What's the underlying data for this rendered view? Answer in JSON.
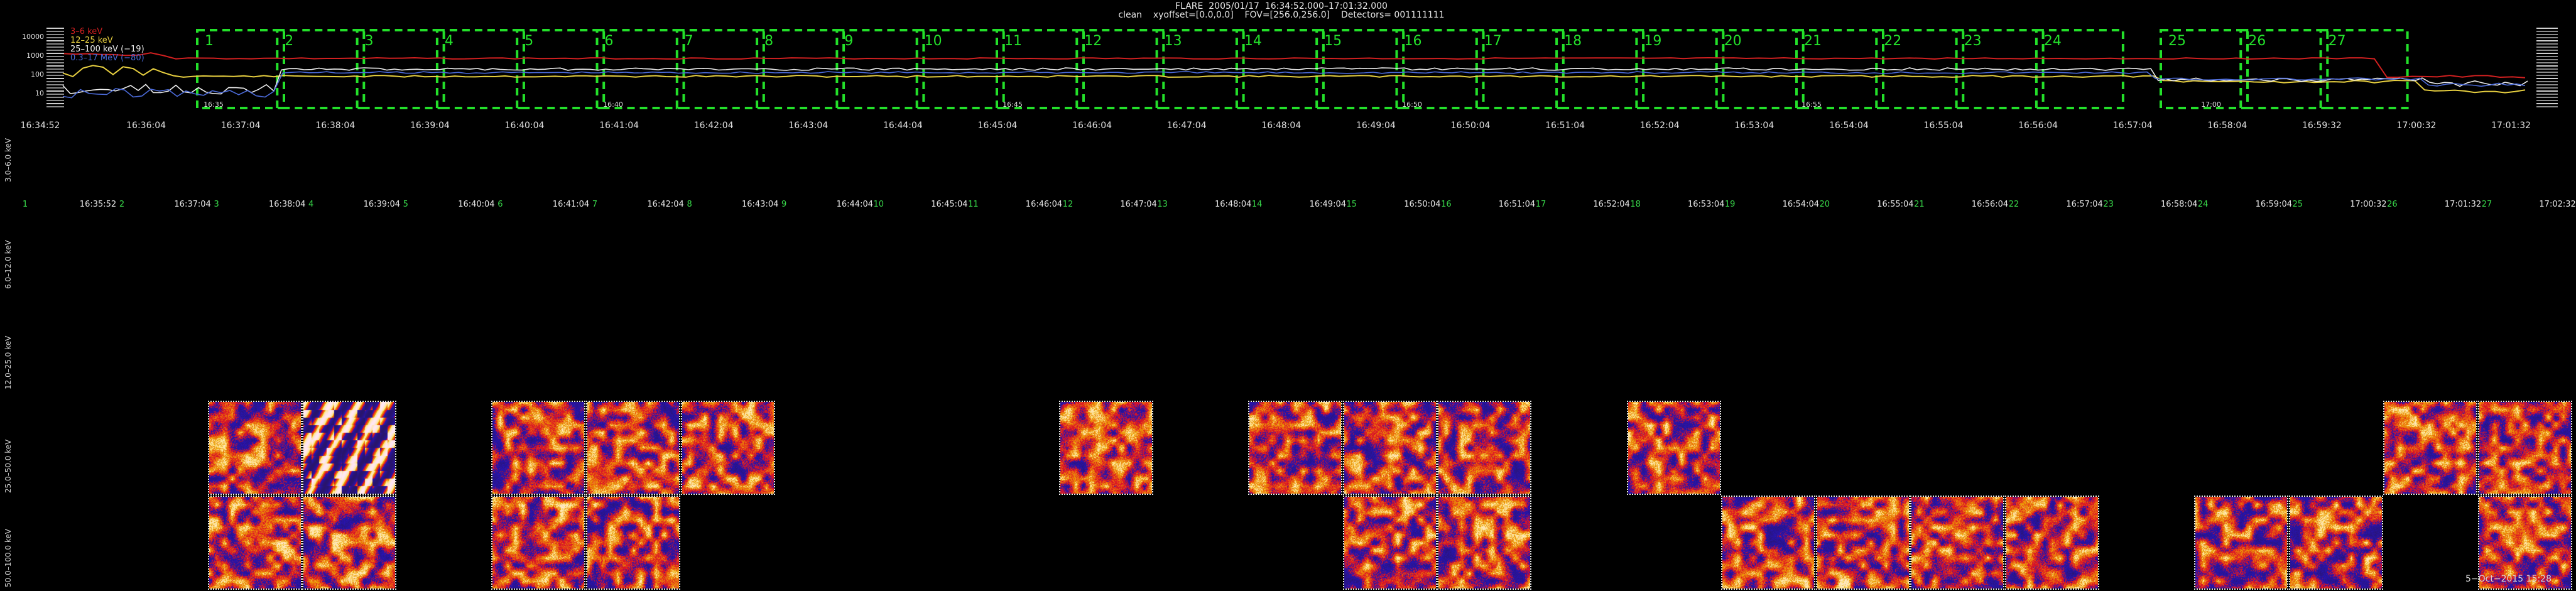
{
  "header": {
    "line1": "FLARE  2005/01/17  16:34:52.000–17:01:32.000",
    "line2": "clean    xyoffset=[0.0,0.0]    FOV=[256.0,256.0]    Detectors= 001111111"
  },
  "lightcurve": {
    "legend": [
      {
        "label": "3–6 keV",
        "color": "#d22020"
      },
      {
        "label": "12–25 keV",
        "color": "#e8d040"
      },
      {
        "label": "25–100 keV (−19)",
        "color": "#eeeeee"
      },
      {
        "label": "0.3–17 MeV (−80)",
        "color": "#4b6ad8"
      }
    ],
    "y_ticks": [
      "10000",
      "1000",
      "100",
      "10"
    ],
    "inner_ticks": [
      "16:35",
      "16:40",
      "16:45",
      "16:50",
      "16:55",
      "17:00"
    ],
    "box_numbers": [
      "1",
      "2",
      "3",
      "4",
      "5",
      "6",
      "7",
      "8",
      "9",
      "10",
      "11",
      "12",
      "13",
      "14",
      "15",
      "16",
      "17",
      "18",
      "19",
      "20",
      "21",
      "22",
      "23",
      "24",
      "25",
      "26",
      "27"
    ],
    "box_color": "#23e02a"
  },
  "time_axis": [
    "16:34:52",
    "16:36:04",
    "16:37:04",
    "16:38:04",
    "16:39:04",
    "16:40:04",
    "16:41:04",
    "16:42:04",
    "16:43:04",
    "16:44:04",
    "16:45:04",
    "16:46:04",
    "16:47:04",
    "16:48:04",
    "16:49:04",
    "16:50:04",
    "16:51:04",
    "16:52:04",
    "16:53:04",
    "16:54:04",
    "16:55:04",
    "16:56:04",
    "16:57:04",
    "16:58:04",
    "16:59:32",
    "17:00:32",
    "17:01:32"
  ],
  "energy_rows": [
    "3.0–6.0 keV",
    "6.0–12.0 keV",
    "12.0–25.0 keV",
    "25.0–50.0 keV",
    "50.0–100.0 keV"
  ],
  "interval_labels": {
    "first_index": "1",
    "times": [
      "16:35:52",
      "16:37:04",
      "16:38:04",
      "16:39:04",
      "16:40:04",
      "16:41:04",
      "16:42:04",
      "16:43:04",
      "16:44:04",
      "16:45:04",
      "16:46:04",
      "16:47:04",
      "16:48:04",
      "16:49:04",
      "16:50:04",
      "16:51:04",
      "16:52:04",
      "16:53:04",
      "16:54:04",
      "16:55:04",
      "16:56:04",
      "16:57:04",
      "16:58:04",
      "16:59:04",
      "17:00:32",
      "17:01:32",
      "17:02:32"
    ],
    "indices": [
      "2",
      "3",
      "4",
      "5",
      "6",
      "7",
      "8",
      "9",
      "10",
      "11",
      "12",
      "13",
      "14",
      "15",
      "16",
      "17",
      "18",
      "19",
      "20",
      "21",
      "22",
      "23",
      "24",
      "25",
      "26",
      "27"
    ]
  },
  "tiles_25_50": [
    1,
    2,
    4,
    5,
    6,
    10,
    12,
    13,
    14,
    16,
    24,
    25
  ],
  "tiles_50_100": [
    1,
    2,
    4,
    5,
    13,
    14,
    17,
    18,
    19,
    20,
    22,
    23,
    25
  ],
  "datestamp": "5−Oct−2015 15:28"
}
